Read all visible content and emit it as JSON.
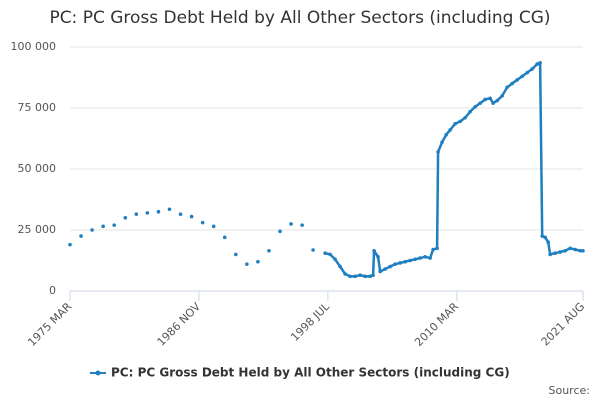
{
  "chart_data": {
    "type": "line",
    "title": "PC: PC Gross Debt Held by All Other Sectors (including CG)",
    "source": "Source:",
    "series": [
      {
        "name": "PC: PC Gross Debt Held by All Other Sectors (including CG)",
        "color": "#1f7fc0",
        "x": [
          1975.17,
          1976.17,
          1977.17,
          1978.17,
          1979.17,
          1980.17,
          1981.17,
          1982.17,
          1983.17,
          1984.17,
          1985.17,
          1986.17,
          1987.17,
          1988.17,
          1989.17,
          1990.17,
          1991.17,
          1992.17,
          1993.17,
          1994.17,
          1995.17,
          1996.17,
          1997.16,
          1998.25,
          1998.7,
          1999.15,
          1999.61,
          2000.06,
          2000.51,
          2000.96,
          2001.42,
          2001.87,
          2002.32,
          2002.59,
          2002.68,
          2003.04,
          2003.23,
          2003.68,
          2004.13,
          2004.58,
          2005.04,
          2005.49,
          2005.94,
          2006.39,
          2006.85,
          2007.3,
          2007.75,
          2008.02,
          2008.38,
          2008.47,
          2008.83,
          2009.2,
          2009.56,
          2010.01,
          2010.47,
          2010.92,
          2011.37,
          2011.82,
          2012.28,
          2012.73,
          2013.18,
          2013.45,
          2013.81,
          2014.27,
          2014.72,
          2015.17,
          2015.62,
          2016.08,
          2016.53,
          2016.98,
          2017.43,
          2017.7,
          2017.89,
          2018.16,
          2018.43,
          2018.61,
          2019.06,
          2019.52,
          2019.97,
          2020.42,
          2020.87,
          2021.33,
          2021.58
        ],
        "values": [
          19000,
          22500,
          25000,
          26500,
          27000,
          30000,
          31500,
          32000,
          32500,
          33500,
          31500,
          30500,
          28000,
          26500,
          22000,
          15000,
          11000,
          12000,
          16500,
          24500,
          27500,
          27000,
          16800,
          15500,
          15000,
          13000,
          10000,
          7000,
          6000,
          6000,
          6500,
          6000,
          6000,
          6500,
          16500,
          14000,
          8000,
          9000,
          10000,
          11000,
          11500,
          12000,
          12500,
          13000,
          13500,
          14000,
          13500,
          17000,
          17500,
          57000,
          61000,
          64000,
          66000,
          68500,
          69500,
          71000,
          73500,
          75500,
          77000,
          78500,
          79000,
          77000,
          78000,
          80000,
          83500,
          85000,
          86500,
          88000,
          89500,
          91000,
          93000,
          93500,
          22500,
          22000,
          20000,
          15000,
          15500,
          16000,
          16500,
          17500,
          17000,
          16500,
          16500
        ]
      }
    ],
    "xlim": [
      1975.17,
      2021.58
    ],
    "xticks": [
      {
        "value": 1975.17,
        "label": "1975 MAR"
      },
      {
        "value": 1986.83,
        "label": "1986 NOV"
      },
      {
        "value": 1998.5,
        "label": "1998 JUL"
      },
      {
        "value": 2010.17,
        "label": "2010 MAR"
      },
      {
        "value": 2021.58,
        "label": "2021 AUG"
      }
    ],
    "ylim": [
      0,
      100000
    ],
    "yticks": [
      0,
      {
        "value": 25000,
        "label": "25 000"
      },
      {
        "value": 50000,
        "label": "50 000"
      },
      {
        "value": 75000,
        "label": "75 000"
      },
      {
        "value": 100000,
        "label": "100 000"
      }
    ],
    "grid": true,
    "legend": "bottom"
  }
}
